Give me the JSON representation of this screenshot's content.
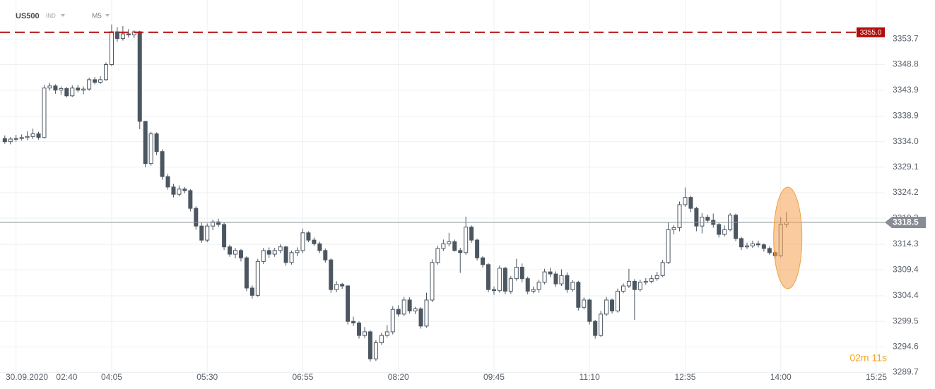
{
  "header": {
    "symbol": "US500",
    "kind": "IND",
    "interval": "M5"
  },
  "countdown": "02m 11s",
  "chart_data": {
    "type": "candlestick",
    "categories": [
      null,
      null,
      "30.09.2020 02:40",
      null,
      null,
      null,
      null,
      null,
      null,
      null,
      null,
      null,
      null,
      null,
      null,
      null,
      null,
      null,
      null,
      "04:05",
      null,
      null,
      null,
      null,
      null,
      null,
      null,
      null,
      null,
      null,
      null,
      null,
      null,
      null,
      null,
      null,
      "05:30",
      null,
      null,
      null,
      null,
      null,
      null,
      null,
      null,
      null,
      null,
      null,
      null,
      null,
      null,
      null,
      null,
      "06:55",
      null,
      null,
      null,
      null,
      null,
      null,
      null,
      null,
      null,
      null,
      null,
      null,
      null,
      null,
      null,
      null,
      "08:20",
      null,
      null,
      null,
      null,
      null,
      null,
      null,
      null,
      null,
      null,
      null,
      null,
      null,
      null,
      null,
      null,
      "09:45",
      null,
      null,
      null,
      null,
      null,
      null,
      null,
      null,
      null,
      null,
      null,
      null,
      null,
      null,
      null,
      null,
      "11:10",
      null,
      null,
      null,
      null,
      null,
      null,
      null,
      null,
      null,
      null,
      null,
      null,
      null,
      null,
      null,
      null,
      "12:35",
      null,
      null,
      null,
      null,
      null,
      null,
      null,
      null,
      null,
      null,
      null,
      null,
      null,
      null,
      null,
      null,
      "14:00",
      null,
      null,
      null,
      null,
      null,
      null,
      null,
      null,
      null,
      null,
      null,
      null,
      null,
      null,
      null,
      null,
      "15:25"
    ],
    "values": [
      [
        3334.6,
        3335.2,
        3333.6,
        3334.0
      ],
      [
        3334.0,
        3334.9,
        3333.5,
        3334.5
      ],
      [
        3334.5,
        3335.3,
        3334.0,
        3334.6
      ],
      [
        3334.6,
        3335.4,
        3334.2,
        3334.8
      ],
      [
        3334.8,
        3336.0,
        3334.3,
        3335.0
      ],
      [
        3335.0,
        3336.5,
        3334.5,
        3335.5
      ],
      [
        3335.5,
        3335.9,
        3334.4,
        3334.8
      ],
      [
        3334.8,
        3344.9,
        3334.6,
        3344.3
      ],
      [
        3344.3,
        3345.3,
        3343.8,
        3344.7
      ],
      [
        3344.7,
        3345.0,
        3343.2,
        3343.9
      ],
      [
        3343.9,
        3344.6,
        3343.0,
        3344.2
      ],
      [
        3344.2,
        3344.5,
        3342.5,
        3342.8
      ],
      [
        3342.8,
        3344.8,
        3342.6,
        3344.3
      ],
      [
        3344.3,
        3344.9,
        3343.5,
        3343.9
      ],
      [
        3343.9,
        3344.6,
        3343.1,
        3344.1
      ],
      [
        3344.1,
        3346.3,
        3343.8,
        3345.9
      ],
      [
        3345.9,
        3346.4,
        3345.0,
        3345.4
      ],
      [
        3345.4,
        3346.6,
        3345.1,
        3345.9
      ],
      [
        3345.9,
        3349.2,
        3345.7,
        3348.8
      ],
      [
        3348.8,
        3356.5,
        3348.5,
        3355.1
      ],
      [
        3355.1,
        3356.0,
        3353.2,
        3353.8
      ],
      [
        3353.8,
        3356.2,
        3353.4,
        3354.7
      ],
      [
        3354.7,
        3355.6,
        3354.0,
        3354.5
      ],
      [
        3354.5,
        3355.4,
        3353.9,
        3355.1
      ],
      [
        3355.1,
        3355.3,
        3336.4,
        3337.9
      ],
      [
        3337.9,
        3338.0,
        3329.1,
        3329.8
      ],
      [
        3329.8,
        3335.9,
        3329.4,
        3335.5
      ],
      [
        3335.5,
        3335.8,
        3331.4,
        3332.1
      ],
      [
        3332.1,
        3332.5,
        3326.7,
        3327.3
      ],
      [
        3327.3,
        3327.8,
        3324.8,
        3325.3
      ],
      [
        3325.3,
        3325.9,
        3323.3,
        3323.9
      ],
      [
        3323.9,
        3325.6,
        3323.5,
        3324.9
      ],
      [
        3324.9,
        3325.3,
        3324.1,
        3324.6
      ],
      [
        3324.6,
        3324.9,
        3320.6,
        3321.2
      ],
      [
        3321.2,
        3321.6,
        3317.1,
        3317.8
      ],
      [
        3317.8,
        3318.4,
        3314.6,
        3315.1
      ],
      [
        3315.1,
        3318.3,
        3314.7,
        3317.8
      ],
      [
        3317.8,
        3319.0,
        3317.0,
        3318.6
      ],
      [
        3318.6,
        3319.2,
        3317.6,
        3318.1
      ],
      [
        3318.1,
        3318.5,
        3313.2,
        3313.8
      ],
      [
        3313.8,
        3314.2,
        3311.9,
        3312.4
      ],
      [
        3312.4,
        3313.6,
        3311.6,
        3313.1
      ],
      [
        3313.1,
        3313.4,
        3311.0,
        3311.7
      ],
      [
        3311.7,
        3312.0,
        3305.3,
        3305.9
      ],
      [
        3305.9,
        3306.4,
        3303.9,
        3304.5
      ],
      [
        3304.5,
        3311.5,
        3304.2,
        3311.0
      ],
      [
        3311.0,
        3313.6,
        3310.5,
        3313.1
      ],
      [
        3313.1,
        3313.7,
        3311.7,
        3312.4
      ],
      [
        3312.4,
        3313.6,
        3311.9,
        3313.1
      ],
      [
        3313.1,
        3314.3,
        3312.6,
        3313.8
      ],
      [
        3313.8,
        3314.0,
        3310.2,
        3310.8
      ],
      [
        3310.8,
        3313.1,
        3310.4,
        3312.7
      ],
      [
        3312.7,
        3313.7,
        3312.0,
        3313.1
      ],
      [
        3313.1,
        3317.3,
        3312.6,
        3316.5
      ],
      [
        3316.5,
        3316.8,
        3314.7,
        3315.1
      ],
      [
        3315.1,
        3315.6,
        3314.0,
        3314.4
      ],
      [
        3314.4,
        3314.8,
        3312.6,
        3313.1
      ],
      [
        3313.1,
        3313.5,
        3310.8,
        3311.3
      ],
      [
        3311.3,
        3311.6,
        3305.0,
        3305.6
      ],
      [
        3305.6,
        3307.2,
        3305.1,
        3306.6
      ],
      [
        3306.6,
        3306.9,
        3305.7,
        3306.3
      ],
      [
        3306.3,
        3306.5,
        3298.9,
        3299.5
      ],
      [
        3299.5,
        3300.4,
        3298.6,
        3299.2
      ],
      [
        3299.2,
        3299.5,
        3296.2,
        3296.8
      ],
      [
        3296.8,
        3298.4,
        3296.3,
        3297.5
      ],
      [
        3297.5,
        3297.8,
        3291.8,
        3292.3
      ],
      [
        3292.3,
        3295.9,
        3291.9,
        3295.4
      ],
      [
        3295.4,
        3297.3,
        3295.0,
        3296.8
      ],
      [
        3296.8,
        3298.8,
        3296.4,
        3297.5
      ],
      [
        3297.5,
        3302.4,
        3297.0,
        3301.8
      ],
      [
        3301.8,
        3302.6,
        3300.4,
        3300.9
      ],
      [
        3300.9,
        3304.2,
        3300.5,
        3303.6
      ],
      [
        3303.6,
        3304.1,
        3301.0,
        3301.5
      ],
      [
        3301.5,
        3302.3,
        3300.9,
        3301.9
      ],
      [
        3301.9,
        3302.2,
        3298.1,
        3298.6
      ],
      [
        3298.6,
        3305.0,
        3298.3,
        3303.6
      ],
      [
        3303.6,
        3311.4,
        3303.2,
        3310.8
      ],
      [
        3310.8,
        3314.0,
        3310.4,
        3313.5
      ],
      [
        3313.5,
        3315.2,
        3313.0,
        3314.4
      ],
      [
        3314.4,
        3316.5,
        3313.9,
        3314.8
      ],
      [
        3314.8,
        3315.2,
        3312.9,
        3313.1
      ],
      [
        3313.1,
        3313.6,
        3308.8,
        3312.7
      ],
      [
        3312.7,
        3319.6,
        3312.3,
        3317.6
      ],
      [
        3317.6,
        3317.9,
        3314.6,
        3315.1
      ],
      [
        3315.1,
        3315.4,
        3311.2,
        3311.7
      ],
      [
        3311.7,
        3312.0,
        3309.8,
        3310.4
      ],
      [
        3310.4,
        3310.7,
        3305.1,
        3305.6
      ],
      [
        3305.6,
        3306.2,
        3304.6,
        3305.4
      ],
      [
        3305.4,
        3310.2,
        3305.0,
        3309.7
      ],
      [
        3309.7,
        3310.0,
        3304.7,
        3305.3
      ],
      [
        3305.3,
        3308.2,
        3304.8,
        3307.7
      ],
      [
        3307.7,
        3311.5,
        3307.3,
        3309.9
      ],
      [
        3309.9,
        3310.6,
        3307.0,
        3307.7
      ],
      [
        3307.7,
        3308.1,
        3304.7,
        3305.3
      ],
      [
        3305.3,
        3306.2,
        3304.9,
        3305.6
      ],
      [
        3305.6,
        3307.5,
        3305.0,
        3307.0
      ],
      [
        3307.0,
        3309.6,
        3306.6,
        3309.0
      ],
      [
        3309.0,
        3309.8,
        3308.0,
        3308.6
      ],
      [
        3308.6,
        3309.1,
        3306.1,
        3306.7
      ],
      [
        3306.7,
        3309.5,
        3306.3,
        3308.3
      ],
      [
        3308.3,
        3308.9,
        3305.0,
        3305.6
      ],
      [
        3305.6,
        3307.4,
        3305.2,
        3307.0
      ],
      [
        3307.0,
        3307.3,
        3301.6,
        3302.2
      ],
      [
        3302.2,
        3304.1,
        3301.8,
        3303.6
      ],
      [
        3303.6,
        3303.9,
        3298.9,
        3299.5
      ],
      [
        3299.5,
        3299.8,
        3296.2,
        3296.8
      ],
      [
        3296.8,
        3301.5,
        3296.5,
        3300.9
      ],
      [
        3300.9,
        3304.2,
        3300.5,
        3303.6
      ],
      [
        3303.6,
        3303.9,
        3301.0,
        3301.5
      ],
      [
        3301.5,
        3305.8,
        3301.2,
        3305.3
      ],
      [
        3305.3,
        3306.8,
        3304.9,
        3306.3
      ],
      [
        3306.3,
        3309.6,
        3305.9,
        3307.2
      ],
      [
        3307.2,
        3307.6,
        3299.8,
        3305.6
      ],
      [
        3305.6,
        3307.5,
        3305.2,
        3307.0
      ],
      [
        3307.0,
        3307.8,
        3306.5,
        3307.2
      ],
      [
        3307.2,
        3308.4,
        3306.8,
        3307.7
      ],
      [
        3307.7,
        3309.0,
        3307.3,
        3308.3
      ],
      [
        3308.3,
        3311.3,
        3308.0,
        3310.8
      ],
      [
        3310.8,
        3318.5,
        3310.5,
        3317.1
      ],
      [
        3317.1,
        3318.0,
        3316.2,
        3317.5
      ],
      [
        3317.5,
        3322.5,
        3316.8,
        3321.9
      ],
      [
        3321.9,
        3325.2,
        3321.5,
        3323.3
      ],
      [
        3323.3,
        3323.6,
        3320.5,
        3321.2
      ],
      [
        3321.2,
        3321.5,
        3316.8,
        3317.8
      ],
      [
        3317.8,
        3320.3,
        3316.4,
        3319.5
      ],
      [
        3319.5,
        3320.0,
        3318.4,
        3318.9
      ],
      [
        3318.9,
        3320.2,
        3317.5,
        3318.1
      ],
      [
        3318.1,
        3318.4,
        3315.6,
        3316.2
      ],
      [
        3316.2,
        3317.9,
        3315.8,
        3317.1
      ],
      [
        3317.1,
        3320.3,
        3316.8,
        3319.9
      ],
      [
        3319.9,
        3320.2,
        3314.9,
        3315.4
      ],
      [
        3315.4,
        3315.7,
        3313.2,
        3313.8
      ],
      [
        3313.8,
        3314.6,
        3313.4,
        3314.0
      ],
      [
        3314.0,
        3315.0,
        3313.6,
        3314.4
      ],
      [
        3314.4,
        3315.0,
        3313.7,
        3314.2
      ],
      [
        3314.2,
        3314.5,
        3312.9,
        3313.5
      ],
      [
        3313.5,
        3313.9,
        3312.3,
        3312.7
      ],
      [
        3312.7,
        3313.0,
        3311.4,
        3312.1
      ],
      [
        3312.1,
        3319.5,
        3311.8,
        3318.1
      ],
      [
        3318.1,
        3320.5,
        3317.5,
        3318.5
      ],
      null,
      null,
      null,
      null,
      null,
      null,
      null,
      null,
      null,
      null,
      null,
      null,
      null,
      null,
      null,
      null
    ],
    "ylim": [
      3287.6,
      3361.2
    ],
    "yticks": [
      3353.7,
      3348.8,
      3343.9,
      3338.9,
      {
        "value": 3334,
        "label": "3334.0"
      },
      3329.1,
      3324.2,
      3319.3,
      3314.3,
      3309.4,
      3304.4,
      3299.5,
      3294.6,
      3289.7
    ],
    "grid": true,
    "up_color": "#ffffff",
    "down_color": "#4b5661",
    "level_line": {
      "value": 3355,
      "label": "3355.0",
      "color": "#b30c0c"
    },
    "last_price": 3318.5
  }
}
